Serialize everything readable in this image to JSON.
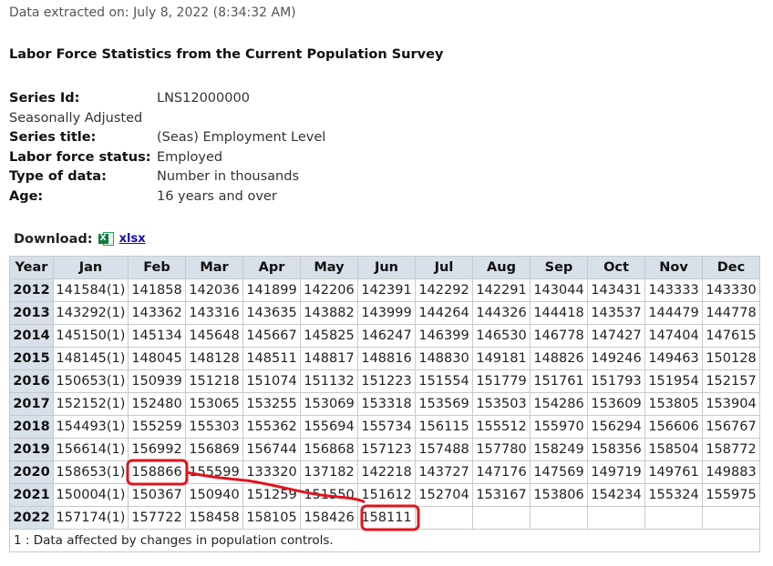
{
  "extracted_on": "Data extracted on: July 8, 2022 (8:34:32 AM)",
  "title": "Labor Force Statistics from the Current Population Survey",
  "meta": {
    "series_id_label": "Series Id:",
    "series_id": "LNS12000000",
    "adjustment": "Seasonally Adjusted",
    "series_title_label": "Series title:",
    "series_title": "(Seas) Employment Level",
    "labor_force_label": "Labor force status:",
    "labor_force": "Employed",
    "type_label": "Type of data:",
    "type": "Number in thousands",
    "age_label": "Age:",
    "age": "16 years and over"
  },
  "download": {
    "label": "Download:",
    "icon": "excel-icon",
    "link": "xlsx"
  },
  "table": {
    "headers": [
      "Year",
      "Jan",
      "Feb",
      "Mar",
      "Apr",
      "May",
      "Jun",
      "Jul",
      "Aug",
      "Sep",
      "Oct",
      "Nov",
      "Dec"
    ],
    "rows": [
      [
        "2012",
        "141584(1)",
        "141858",
        "142036",
        "141899",
        "142206",
        "142391",
        "142292",
        "142291",
        "143044",
        "143431",
        "143333",
        "143330"
      ],
      [
        "2013",
        "143292(1)",
        "143362",
        "143316",
        "143635",
        "143882",
        "143999",
        "144264",
        "144326",
        "144418",
        "143537",
        "144479",
        "144778"
      ],
      [
        "2014",
        "145150(1)",
        "145134",
        "145648",
        "145667",
        "145825",
        "146247",
        "146399",
        "146530",
        "146778",
        "147427",
        "147404",
        "147615"
      ],
      [
        "2015",
        "148145(1)",
        "148045",
        "148128",
        "148511",
        "148817",
        "148816",
        "148830",
        "149181",
        "148826",
        "149246",
        "149463",
        "150128"
      ],
      [
        "2016",
        "150653(1)",
        "150939",
        "151218",
        "151074",
        "151132",
        "151223",
        "151554",
        "151779",
        "151761",
        "151793",
        "151954",
        "152157"
      ],
      [
        "2017",
        "152152(1)",
        "152480",
        "153065",
        "153255",
        "153069",
        "153318",
        "153569",
        "153503",
        "154286",
        "153609",
        "153805",
        "153904"
      ],
      [
        "2018",
        "154493(1)",
        "155259",
        "155303",
        "155362",
        "155694",
        "155734",
        "156115",
        "155512",
        "155970",
        "156294",
        "156606",
        "156767"
      ],
      [
        "2019",
        "156614(1)",
        "156992",
        "156869",
        "156744",
        "156868",
        "157123",
        "157488",
        "157780",
        "158249",
        "158356",
        "158504",
        "158772"
      ],
      [
        "2020",
        "158653(1)",
        "158866",
        "155599",
        "133320",
        "137182",
        "142218",
        "143727",
        "147176",
        "147569",
        "149719",
        "149761",
        "149883"
      ],
      [
        "2021",
        "150004(1)",
        "150367",
        "150940",
        "151259",
        "151550",
        "151612",
        "152704",
        "153167",
        "153806",
        "154234",
        "155324",
        "155975"
      ],
      [
        "2022",
        "157174(1)",
        "157722",
        "158458",
        "158105",
        "158426",
        "158111",
        "",
        "",
        "",
        "",
        "",
        ""
      ]
    ],
    "footnote": "1 : Data affected by changes in population controls."
  },
  "annotation_color": "#e0141e"
}
